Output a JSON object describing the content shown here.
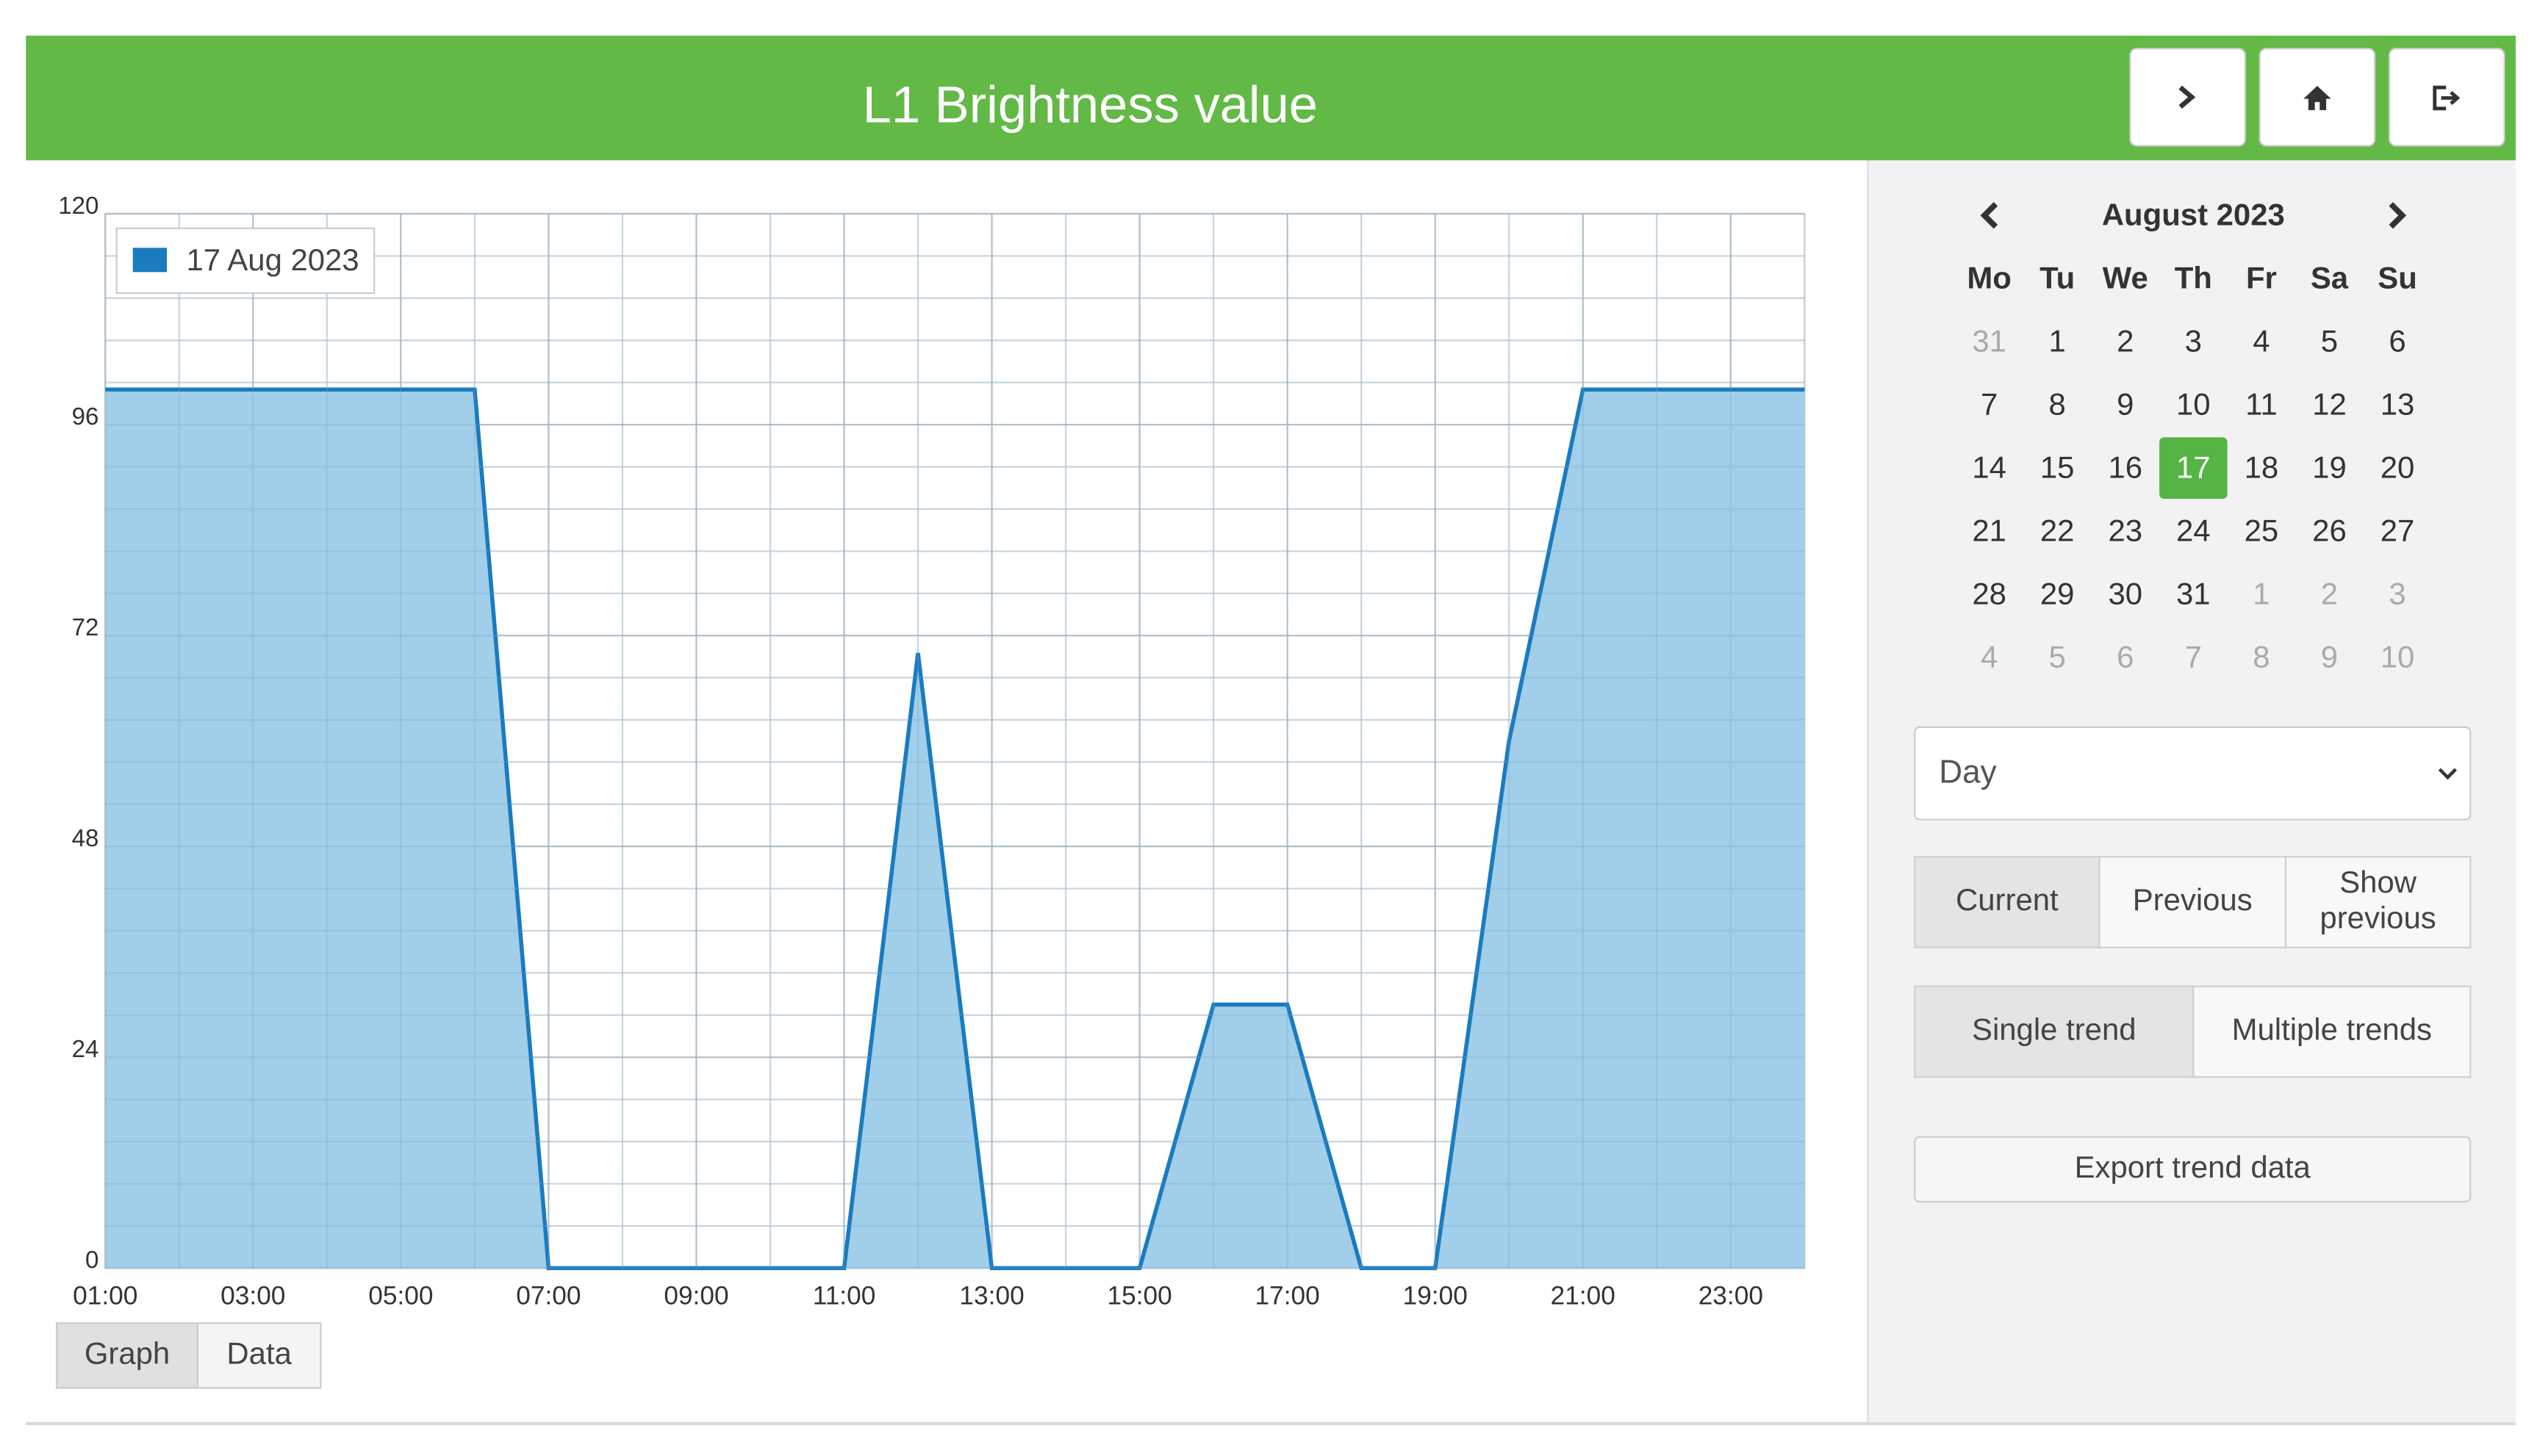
{
  "header": {
    "title": "L1 Brightness value"
  },
  "chart_data": {
    "type": "line",
    "x": [
      1,
      6,
      7,
      11,
      12,
      13,
      15,
      16,
      17,
      18,
      19,
      20,
      21,
      24
    ],
    "series": [
      {
        "name": "17 Aug 2023",
        "color": "#1a7bbf",
        "fill": "#9ccbe8",
        "values": [
          100,
          100,
          0,
          0,
          70,
          0,
          0,
          30,
          30,
          0,
          0,
          60,
          100,
          100
        ]
      }
    ],
    "xlim": [
      1,
      24
    ],
    "xticks": [
      {
        "value": 1,
        "label": "01:00"
      },
      {
        "value": 3,
        "label": "03:00"
      },
      {
        "value": 5,
        "label": "05:00"
      },
      {
        "value": 7,
        "label": "07:00"
      },
      {
        "value": 9,
        "label": "09:00"
      },
      {
        "value": 11,
        "label": "11:00"
      },
      {
        "value": 13,
        "label": "13:00"
      },
      {
        "value": 15,
        "label": "15:00"
      },
      {
        "value": 17,
        "label": "17:00"
      },
      {
        "value": 19,
        "label": "19:00"
      },
      {
        "value": 21,
        "label": "21:00"
      },
      {
        "value": 23,
        "label": "23:00"
      }
    ],
    "ylim": [
      0,
      120
    ],
    "yticks": [
      0,
      24,
      48,
      72,
      96,
      120
    ],
    "grid": true,
    "area": true,
    "legend": "upper left"
  },
  "view_tabs": {
    "items": [
      "Graph",
      "Data"
    ],
    "active": "Graph"
  },
  "calendar": {
    "month": "August 2023",
    "weekdays": [
      "Mo",
      "Tu",
      "We",
      "Th",
      "Fr",
      "Sa",
      "Su"
    ],
    "weeks": [
      [
        31,
        1,
        2,
        3,
        4,
        5,
        6
      ],
      [
        7,
        8,
        9,
        10,
        11,
        12,
        13
      ],
      [
        14,
        15,
        16,
        17,
        18,
        19,
        20
      ],
      [
        21,
        22,
        23,
        24,
        25,
        26,
        27
      ],
      [
        28,
        29,
        30,
        31,
        1,
        2,
        3
      ],
      [
        4,
        5,
        6,
        7,
        8,
        9,
        10
      ]
    ],
    "selected": 17
  },
  "period_select": "Day",
  "mode_buttons": {
    "items": [
      "Current",
      "Previous",
      "Show previous"
    ],
    "active": "Current"
  },
  "trend_buttons": {
    "items": [
      "Single trend",
      "Multiple trends"
    ],
    "active": "Single trend"
  },
  "export_button": "Export trend data"
}
